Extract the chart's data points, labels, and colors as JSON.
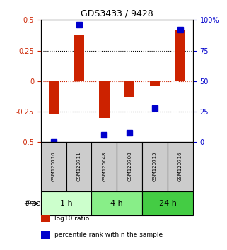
{
  "title": "GDS3433 / 9428",
  "samples": [
    "GSM120710",
    "GSM120711",
    "GSM120648",
    "GSM120708",
    "GSM120715",
    "GSM120716"
  ],
  "log10_ratio": [
    -0.27,
    0.38,
    -0.3,
    -0.13,
    -0.04,
    0.42
  ],
  "percentile_rank": [
    0.5,
    96,
    6,
    8,
    28,
    92
  ],
  "ylim_left": [
    -0.5,
    0.5
  ],
  "ylim_right": [
    0,
    100
  ],
  "yticks_left": [
    -0.5,
    -0.25,
    0,
    0.25,
    0.5
  ],
  "yticks_right": [
    0,
    25,
    50,
    75,
    100
  ],
  "ytick_labels_left": [
    "-0.5",
    "-0.25",
    "0",
    "0.25",
    "0.5"
  ],
  "ytick_labels_right": [
    "0",
    "25",
    "50",
    "75",
    "100%"
  ],
  "hlines_dotted": [
    -0.25,
    0.25
  ],
  "hline_red": 0,
  "groups": [
    {
      "label": "1 h",
      "indices": [
        0,
        1
      ],
      "color": "#ccffcc"
    },
    {
      "label": "4 h",
      "indices": [
        2,
        3
      ],
      "color": "#88ee88"
    },
    {
      "label": "24 h",
      "indices": [
        4,
        5
      ],
      "color": "#44cc44"
    }
  ],
  "bar_color": "#cc2200",
  "dot_color": "#0000cc",
  "bar_width": 0.4,
  "dot_size": 6,
  "xlabel_color_left": "#cc2200",
  "xlabel_color_right": "#0000cc",
  "sample_box_color": "#cccccc",
  "legend_items": [
    {
      "color": "#cc2200",
      "label": "log10 ratio"
    },
    {
      "color": "#0000cc",
      "label": "percentile rank within the sample"
    }
  ]
}
